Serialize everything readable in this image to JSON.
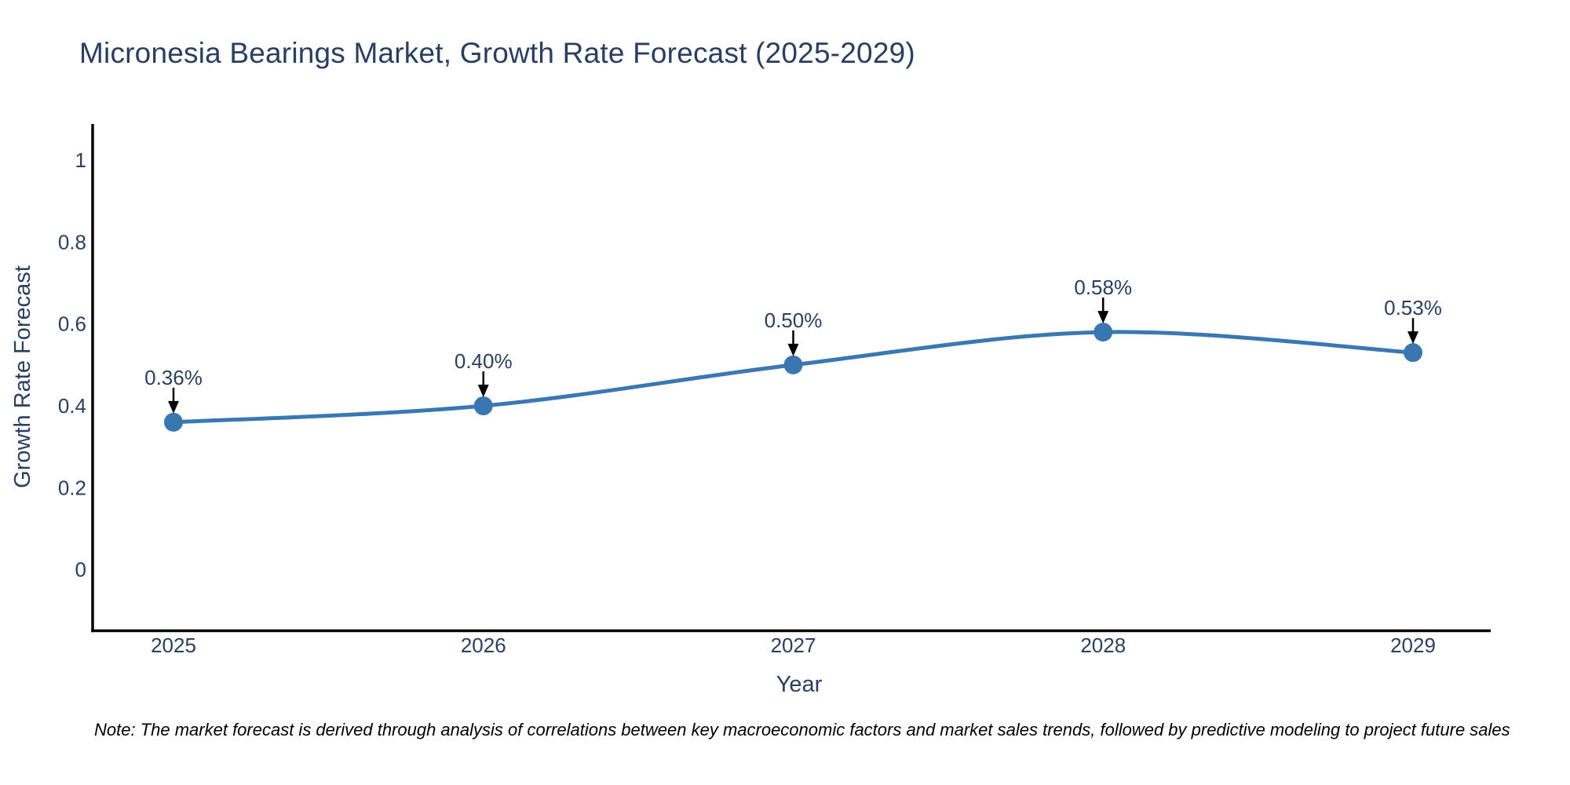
{
  "title": "Micronesia Bearings Market, Growth Rate Forecast (2025-2029)",
  "note": "Note: The market forecast is derived through analysis of correlations between key macroeconomic factors and market sales trends, followed by predictive modeling to project future sales",
  "chart_data": {
    "type": "line",
    "title": "Micronesia Bearings Market, Growth Rate Forecast (2025-2029)",
    "x": [
      2025,
      2026,
      2027,
      2028,
      2029
    ],
    "xtick_labels": [
      "2025",
      "2026",
      "2027",
      "2028",
      "2029"
    ],
    "series": [
      {
        "name": "Growth Rate Forecast",
        "values": [
          0.36,
          0.4,
          0.5,
          0.58,
          0.53
        ],
        "point_labels": [
          "0.36%",
          "0.40%",
          "0.50%",
          "0.58%",
          "0.53%"
        ]
      }
    ],
    "xlabel": "Year",
    "ylabel": "Growth Rate Forecast",
    "yticks": [
      0,
      0.2,
      0.4,
      0.6,
      0.8,
      1
    ],
    "ytick_labels": [
      "0",
      "0.2",
      "0.4",
      "0.6",
      "0.8",
      "1"
    ],
    "ylim": [
      -0.149,
      1.088
    ],
    "grid": false,
    "legend": "none",
    "line_shape": "spline",
    "colors": {
      "line": "#3a78b3",
      "marker": "#3a76af",
      "axis": "#000000",
      "tick_text": "#2a3f5f",
      "title_text": "#2a3f5f",
      "annotation_text": "#2a3f5f",
      "arrow": "#000000",
      "note_text": "#000000",
      "background": "#ffffff"
    }
  }
}
